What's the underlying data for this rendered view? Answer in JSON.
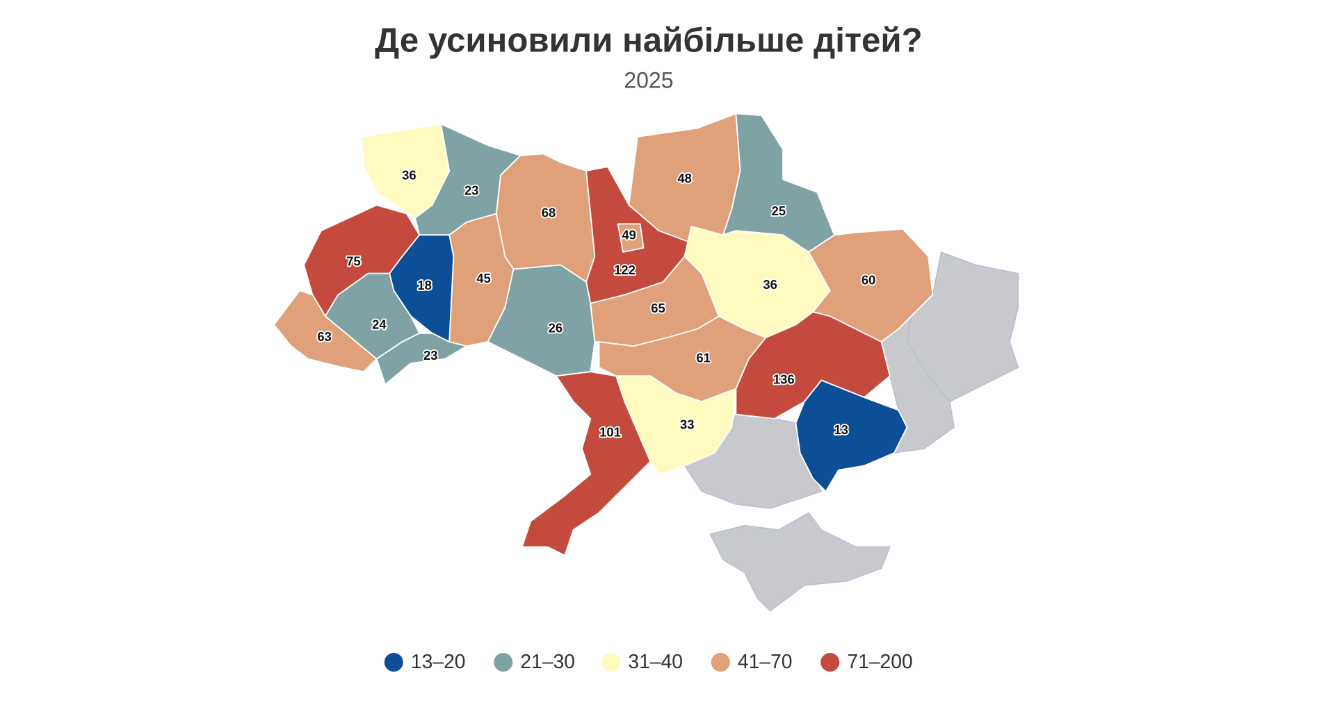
{
  "map": {
    "title": "Де усиновили найбільше дітей?",
    "subtitle": "2025",
    "values": [
      36,
      23,
      68,
      122,
      49,
      48,
      25,
      75,
      18,
      45,
      26,
      65,
      36,
      60,
      63,
      24,
      23,
      61,
      136,
      13,
      101,
      33
    ],
    "legend": [
      {
        "label": "13–20",
        "min": 13,
        "max": 20,
        "color": "#0d4f96"
      },
      {
        "label": "21–30",
        "min": 21,
        "max": 30,
        "color": "#7fa3a4"
      },
      {
        "label": "31–40",
        "min": 31,
        "max": 40,
        "color": "#fffbc0"
      },
      {
        "label": "41–70",
        "min": 41,
        "max": 70,
        "color": "#e0a07a"
      },
      {
        "label": "71–200",
        "min": 71,
        "max": 200,
        "color": "#c44a3d"
      }
    ]
  }
}
